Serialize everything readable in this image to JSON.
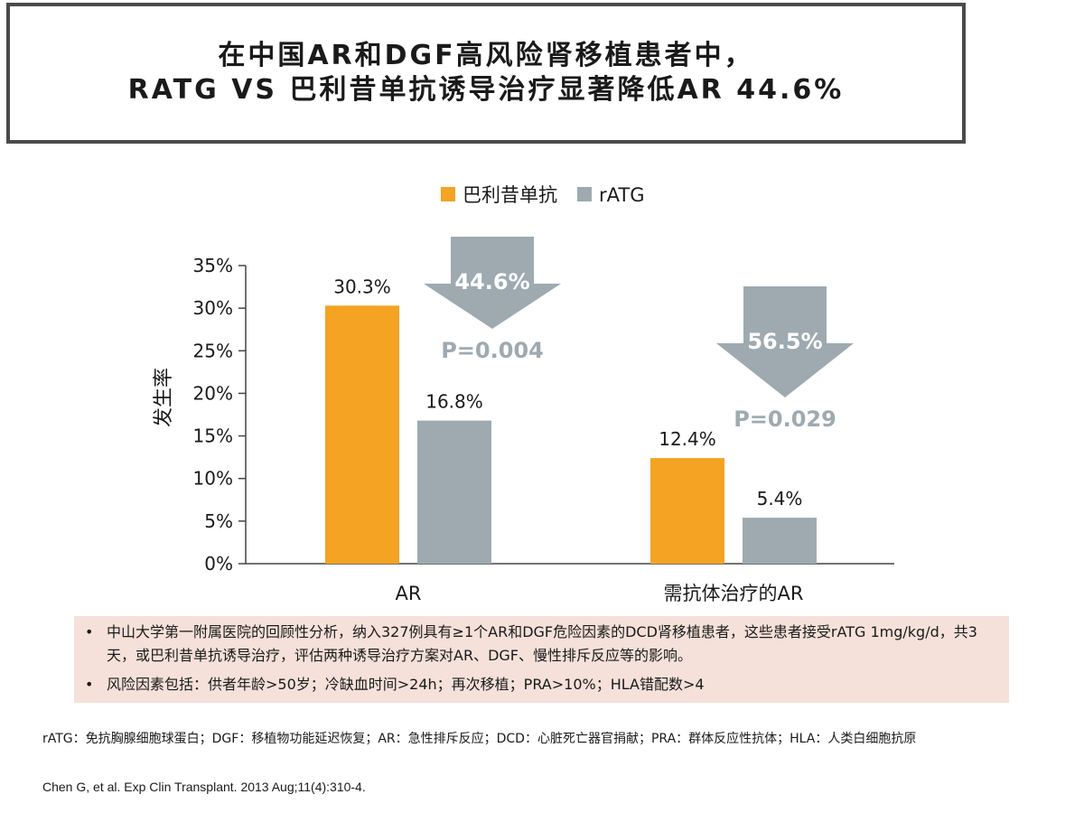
{
  "title": {
    "line1": "在中国AR和DGF高风险肾移植患者中，",
    "line2": "RATG VS 巴利昔单抗诱导治疗显著降低AR 44.6%"
  },
  "chart_data": {
    "type": "bar",
    "categories": [
      "AR",
      "需抗体治疗的AR"
    ],
    "series": [
      {
        "name": "巴利昔单抗",
        "values": [
          30.3,
          12.4
        ],
        "labels": [
          "30.3%",
          "12.4%"
        ],
        "color": "#f4a322"
      },
      {
        "name": "rATG",
        "values": [
          16.8,
          5.4
        ],
        "labels": [
          "16.8%",
          "5.4%"
        ],
        "color": "#9eaab0"
      }
    ],
    "ylabel": "发生率",
    "ylim": [
      0,
      35
    ],
    "yticks": [
      0,
      5,
      10,
      15,
      20,
      25,
      30,
      35
    ],
    "ytick_labels": [
      "0%",
      "5%",
      "10%",
      "15%",
      "20%",
      "25%",
      "30%",
      "35%"
    ],
    "legend_position": "top",
    "grid": false,
    "annotations": [
      {
        "category": "AR",
        "reduction": "44.6%",
        "p_value": "P=0.004",
        "color": "#9eaab0"
      },
      {
        "category": "需抗体治疗的AR",
        "reduction": "56.5%",
        "p_value": "P=0.029",
        "color": "#9eaab0"
      }
    ]
  },
  "info": {
    "bullet": "•",
    "items": [
      "中山大学第一附属医院的回顾性分析，纳入327例具有≥1个AR和DGF危险因素的DCD肾移植患者，这些患者接受rATG 1mg/kg/d，共3天，或巴利昔单抗诱导治疗，评估两种诱导治疗方案对AR、DGF、慢性排斥反应等的影响。",
      "风险因素包括：供者年龄>50岁；冷缺血时间>24h；再次移植；PRA>10%；HLA错配数>4"
    ],
    "background": "#f5e1d9"
  },
  "footnote": {
    "abbreviations": "rATG：免抗胸腺细胞球蛋白；DGF：移植物功能延迟恢复；AR：急性排斥反应；DCD：心脏死亡器官捐献；PRA：群体反应性抗体；HLA：人类白细胞抗原",
    "reference": "Chen G, et al. Exp Clin Transplant. 2013 Aug;11(4):310-4."
  }
}
